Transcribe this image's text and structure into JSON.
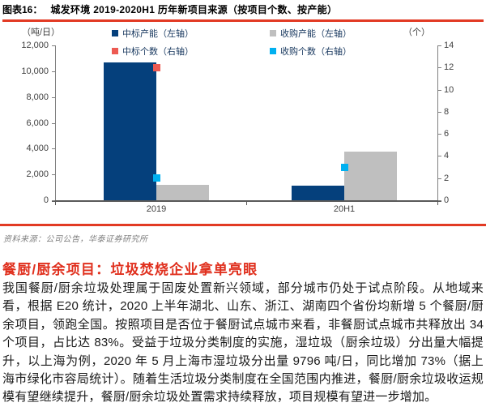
{
  "header": {
    "figure_label": "图表16：",
    "figure_title": "城发环境 2019-2020H1 历年新项目来源（按项目个数、按产能）"
  },
  "colors": {
    "accent_red": "#e23a24",
    "heading_red": "#e0301e",
    "bar_navy": "#05407c",
    "bar_gray": "#bfbfbf",
    "marker_red": "#ed5a52",
    "marker_cyan": "#00b0f0",
    "axis_line": "#808080",
    "legend_text": "#17375e"
  },
  "chart_data": {
    "type": "bar",
    "subtype": "grouped bars with point markers, dual axis",
    "categories": [
      "2019",
      "20H1"
    ],
    "series": [
      {
        "name": "中标产能（左轴）",
        "kind": "bar",
        "axis": "left",
        "color": "#05407c",
        "values": [
          10700,
          1100
        ]
      },
      {
        "name": "收购产能（左轴）",
        "kind": "bar",
        "axis": "left",
        "color": "#bfbfbf",
        "values": [
          1200,
          3750
        ]
      },
      {
        "name": "中标个数（右轴）",
        "kind": "point",
        "axis": "right",
        "color": "#ed5a52",
        "values": [
          12,
          null
        ]
      },
      {
        "name": "收购个数（右轴）",
        "kind": "point",
        "axis": "right",
        "color": "#00b0f0",
        "values": [
          2,
          3
        ]
      }
    ],
    "left_axis": {
      "unit": "（吨/日）",
      "min": 0,
      "max": 12000,
      "step": 2000,
      "tick_labels": [
        "0",
        "2,000",
        "4,000",
        "6,000",
        "8,000",
        "10,000",
        "12,000"
      ]
    },
    "right_axis": {
      "unit": "（个）",
      "min": 0,
      "max": 14,
      "step": 2,
      "tick_labels": [
        "0",
        "2",
        "4",
        "6",
        "8",
        "10",
        "12",
        "14"
      ]
    },
    "grid": false,
    "legend_position": "top-center"
  },
  "footer": {
    "source": "资料来源：公司公告，华泰证券研究所"
  },
  "section": {
    "heading": "餐厨/厨余项目：垃圾焚烧企业拿单亮眼",
    "paragraph": "我国餐厨/厨余垃圾处理属于固废处置新兴领域，部分城市仍处于试点阶段。从地域来看，根据 E20 统计，2020 上半年湖北、山东、浙江、湖南四个省份均新增 5 个餐厨/厨余项目，领跑全国。按照项目是否位于餐厨试点城市来看，非餐厨试点城市共释放出 34 个项目，占比达 83%。受益于垃圾分类制度的实施，湿垃圾（厨余垃圾）分出量大幅提升，以上海为例，2020 年 5 月上海市湿垃圾分出量 9796 吨/日，同比增加 73%（据上海市绿化市容局统计）。随着生活垃圾分类制度在全国范围内推进，餐厨/厨余垃圾收运规模有望继续提升，餐厨/厨余垃圾处置需求持续释放，项目规模有望进一步增加。"
  }
}
